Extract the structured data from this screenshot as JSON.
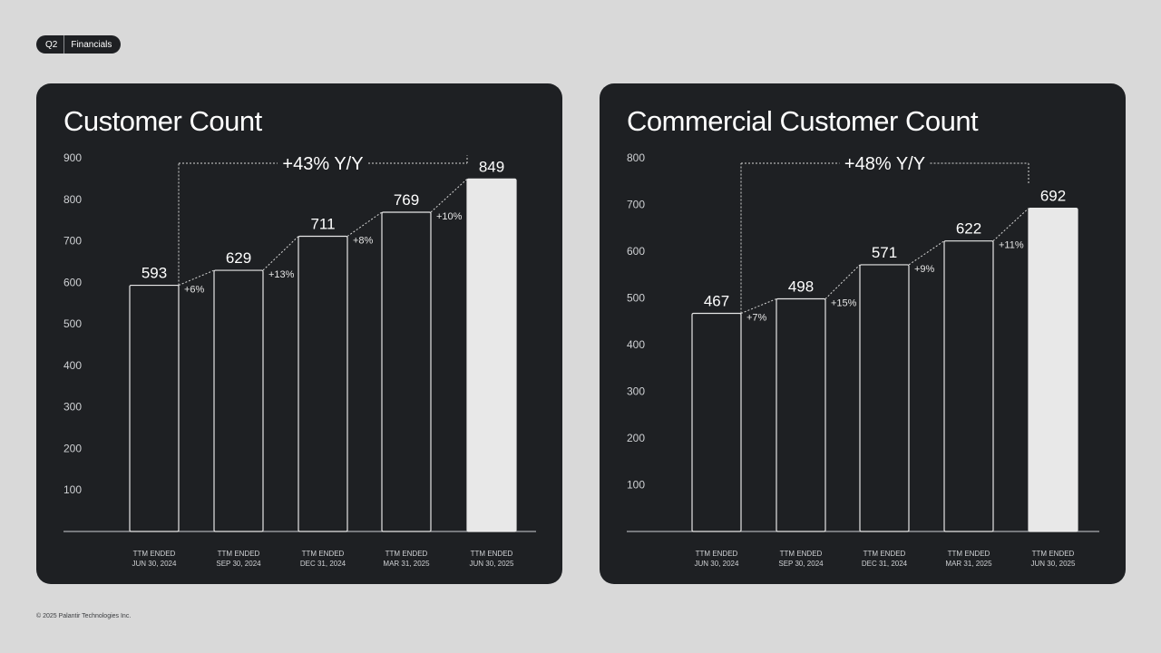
{
  "header": {
    "quarter": "Q2",
    "section": "Financials"
  },
  "footer": {
    "copyright": "© 2025 Palantir Technologies Inc."
  },
  "colors": {
    "background": "#d9d9d9",
    "panel": "#1e2023",
    "text": "#ffffff",
    "axis_text": "#cfd1d4",
    "highlight_bar": "#e8e8e8"
  },
  "chart_data": [
    {
      "type": "bar",
      "title": "Customer Count",
      "categories": [
        [
          "TTM ENDED",
          "JUN 30, 2024"
        ],
        [
          "TTM ENDED",
          "SEP 30, 2024"
        ],
        [
          "TTM ENDED",
          "DEC 31, 2024"
        ],
        [
          "TTM ENDED",
          "MAR 31, 2025"
        ],
        [
          "TTM ENDED",
          "JUN 30, 2025"
        ]
      ],
      "values": [
        593,
        629,
        711,
        769,
        849
      ],
      "growth_labels": [
        "+6%",
        "+13%",
        "+8%",
        "+10%"
      ],
      "yoy_label": "+43% Y/Y",
      "ylim": [
        0,
        900
      ],
      "yticks": [
        100,
        200,
        300,
        400,
        500,
        600,
        700,
        800,
        900
      ],
      "highlight_last": true,
      "grid": false
    },
    {
      "type": "bar",
      "title": "Commercial Customer Count",
      "categories": [
        [
          "TTM ENDED",
          "JUN 30, 2024"
        ],
        [
          "TTM ENDED",
          "SEP 30, 2024"
        ],
        [
          "TTM ENDED",
          "DEC 31, 2024"
        ],
        [
          "TTM ENDED",
          "MAR 31, 2025"
        ],
        [
          "TTM ENDED",
          "JUN 30, 2025"
        ]
      ],
      "values": [
        467,
        498,
        571,
        622,
        692
      ],
      "growth_labels": [
        "+7%",
        "+15%",
        "+9%",
        "+11%"
      ],
      "yoy_label": "+48% Y/Y",
      "ylim": [
        0,
        800
      ],
      "yticks": [
        100,
        200,
        300,
        400,
        500,
        600,
        700,
        800
      ],
      "highlight_last": true,
      "grid": false
    }
  ]
}
